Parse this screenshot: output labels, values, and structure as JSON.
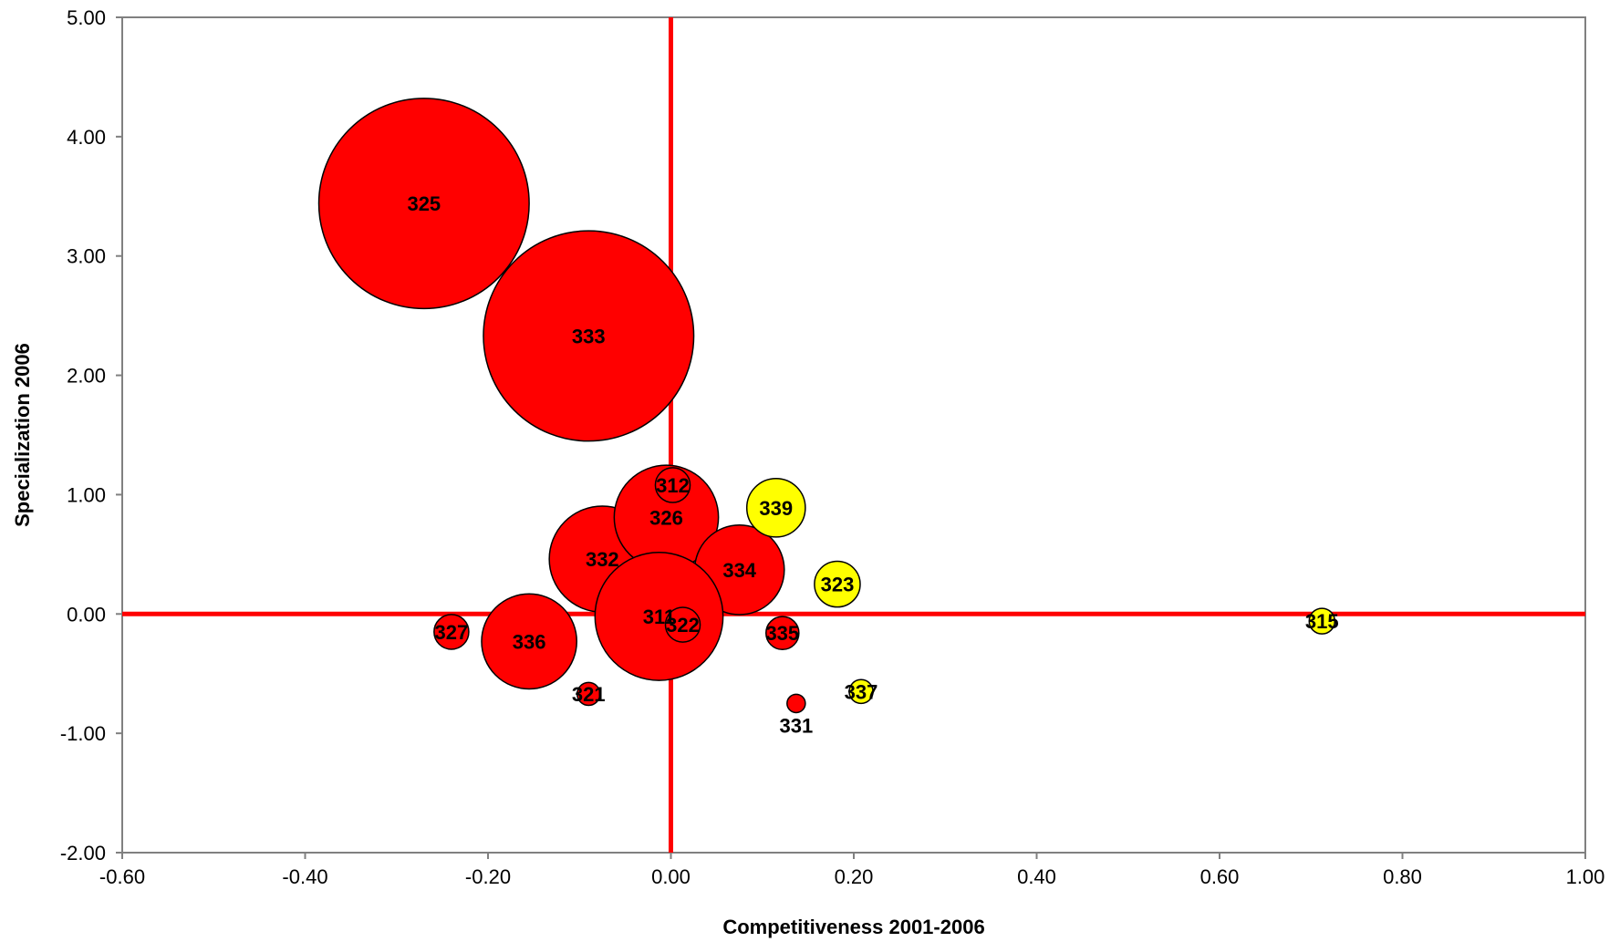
{
  "chart_data": {
    "type": "bubble",
    "title": "",
    "xlabel": "Competitiveness 2001-2006",
    "ylabel": "Specialization 2006",
    "xlim": [
      -0.6,
      1.0
    ],
    "ylim": [
      -2.0,
      5.0
    ],
    "x_ticks": [
      "-0.60",
      "-0.40",
      "-0.20",
      "0.00",
      "0.20",
      "0.40",
      "0.60",
      "0.80",
      "1.00"
    ],
    "y_ticks": [
      "5.00",
      "4.00",
      "3.00",
      "2.00",
      "1.00",
      "0.00",
      "-1.00",
      "-2.00"
    ],
    "x_tick_values": [
      -0.6,
      -0.4,
      -0.2,
      0.0,
      0.2,
      0.4,
      0.6,
      0.8,
      1.0
    ],
    "y_tick_values": [
      5,
      4,
      3,
      2,
      1,
      0,
      -1,
      -2
    ],
    "grid": false,
    "legend": "none",
    "reference_lines": {
      "x": 0.0,
      "y": 0.0,
      "color": "#ff0000"
    },
    "colors": {
      "red": "#ff0000",
      "yellow": "#ffff00",
      "outline": "#000000"
    },
    "points": [
      {
        "label": "325",
        "x": -0.27,
        "y": 3.44,
        "size": 0.115,
        "color": "red"
      },
      {
        "label": "333",
        "x": -0.09,
        "y": 2.33,
        "size": 0.115,
        "color": "red"
      },
      {
        "label": "332",
        "x": -0.075,
        "y": 0.46,
        "size": 0.058,
        "color": "red"
      },
      {
        "label": "326",
        "x": -0.005,
        "y": 0.81,
        "size": 0.057,
        "color": "red"
      },
      {
        "label": "334",
        "x": 0.075,
        "y": 0.37,
        "size": 0.049,
        "color": "red"
      },
      {
        "label": "312",
        "x": 0.002,
        "y": 1.08,
        "size": 0.019,
        "color": "red"
      },
      {
        "label": "311",
        "x": -0.013,
        "y": -0.02,
        "size": 0.07,
        "color": "red"
      },
      {
        "label": "322",
        "x": 0.013,
        "y": -0.09,
        "size": 0.019,
        "color": "red"
      },
      {
        "label": "336",
        "x": -0.155,
        "y": -0.23,
        "size": 0.052,
        "color": "red"
      },
      {
        "label": "327",
        "x": -0.24,
        "y": -0.15,
        "size": 0.019,
        "color": "red"
      },
      {
        "label": "321",
        "x": -0.09,
        "y": -0.67,
        "size": 0.0125,
        "color": "red"
      },
      {
        "label": "335",
        "x": 0.122,
        "y": -0.16,
        "size": 0.018,
        "color": "red"
      },
      {
        "label": "331",
        "x": 0.137,
        "y": -0.75,
        "size": 0.01,
        "color": "red",
        "label_below": true
      },
      {
        "label": "339",
        "x": 0.115,
        "y": 0.89,
        "size": 0.032,
        "color": "yellow"
      },
      {
        "label": "323",
        "x": 0.182,
        "y": 0.25,
        "size": 0.025,
        "color": "yellow"
      },
      {
        "label": "315",
        "x": 0.712,
        "y": -0.06,
        "size": 0.014,
        "color": "yellow"
      },
      {
        "label": "337",
        "x": 0.208,
        "y": -0.65,
        "size": 0.013,
        "color": "yellow"
      }
    ]
  }
}
